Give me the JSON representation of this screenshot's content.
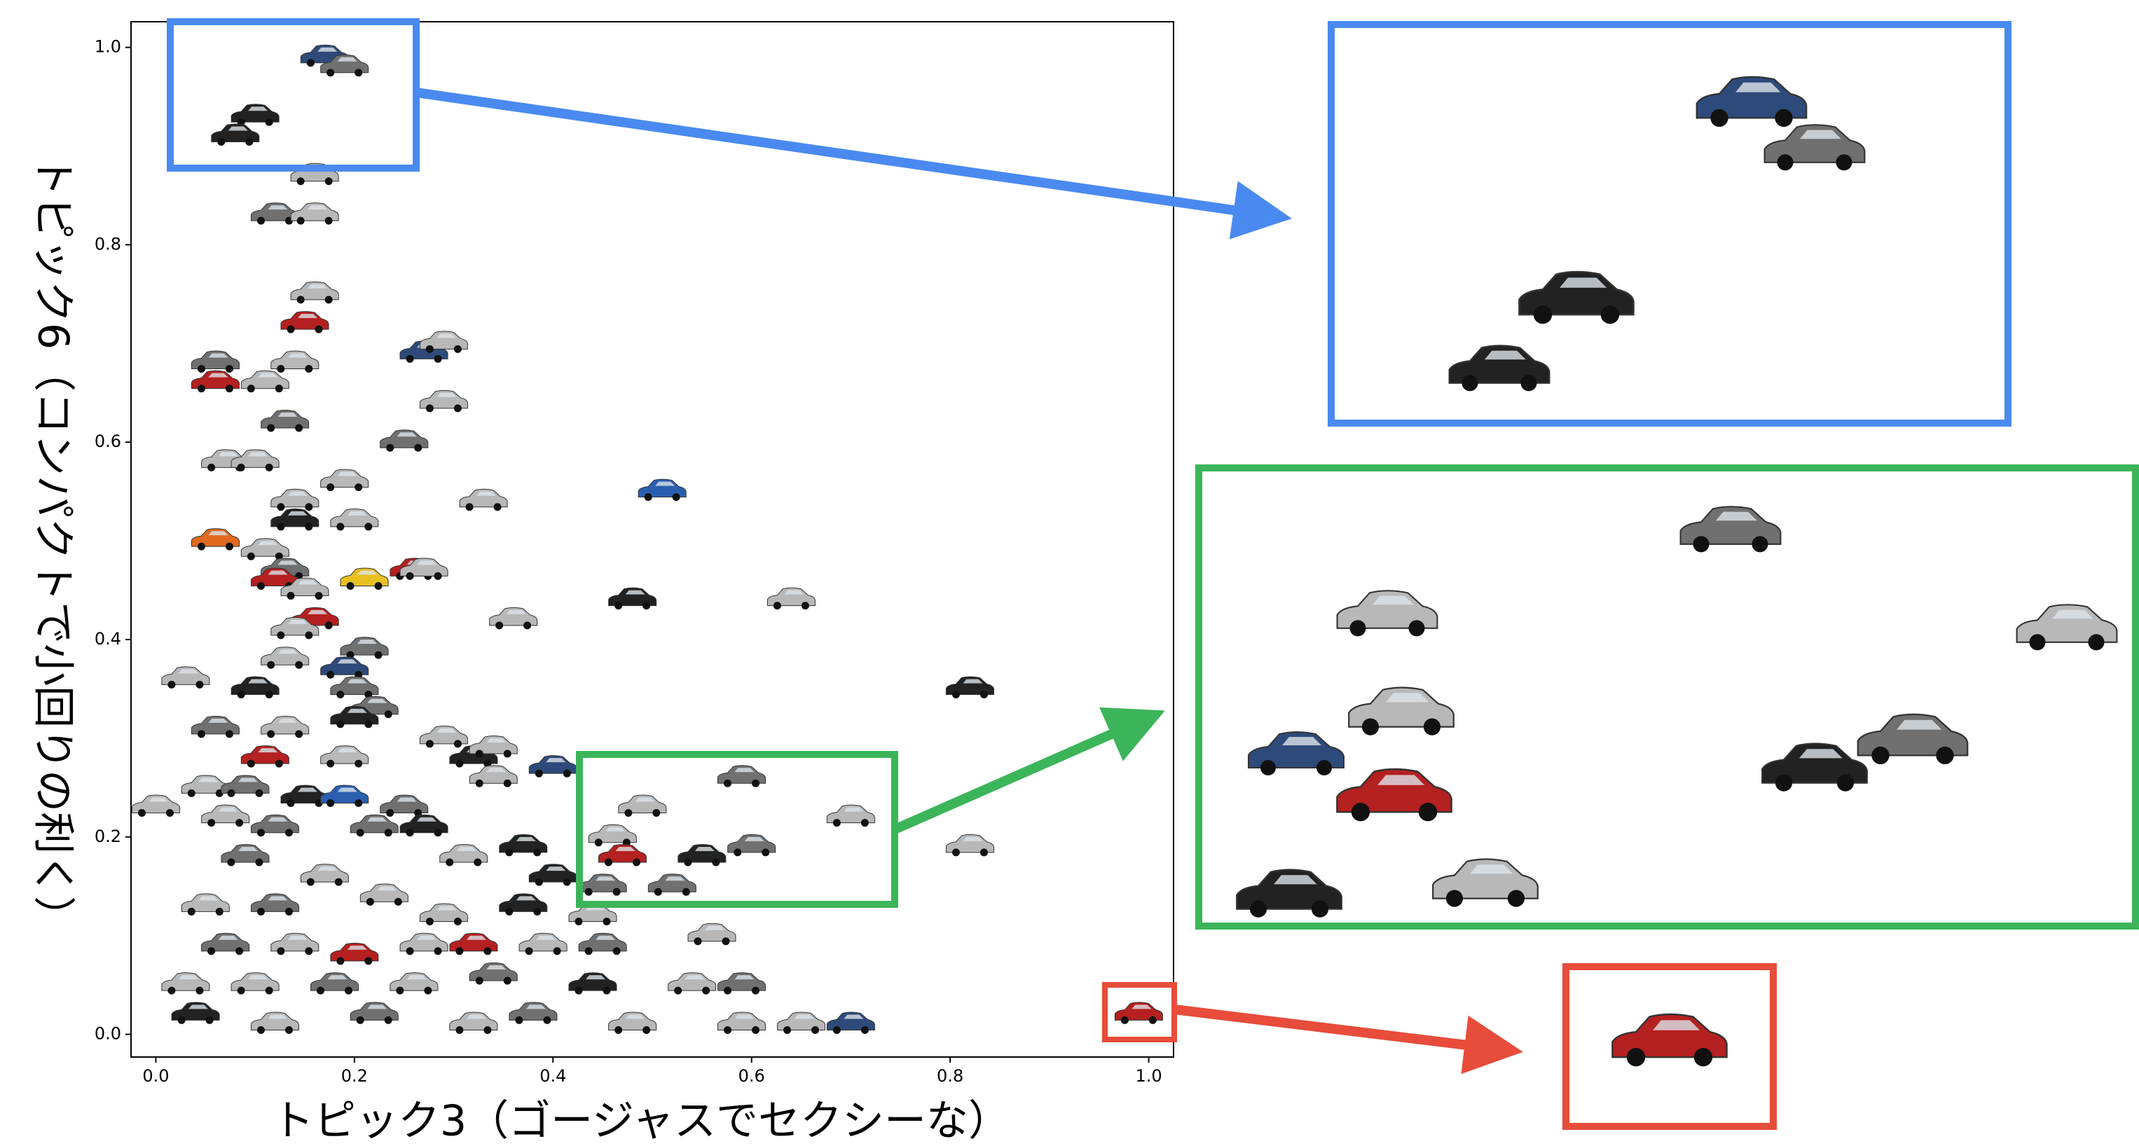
{
  "chart_data": {
    "type": "scatter",
    "xlabel": "トピック3（ゴージャスでセクシーな）",
    "ylabel": "トピック6（コンパクトで小回りの利く）",
    "xlim": [
      -0.025,
      1.025
    ],
    "ylim": [
      -0.023,
      1.026
    ],
    "xticks": [
      {
        "value": 0,
        "label": "0.0"
      },
      {
        "value": 0.2,
        "label": "0.2"
      },
      {
        "value": 0.4,
        "label": "0.4"
      },
      {
        "value": 0.6,
        "label": "0.6"
      },
      {
        "value": 0.8,
        "label": "0.8"
      },
      {
        "value": 1,
        "label": "1.0"
      }
    ],
    "yticks": [
      {
        "value": 0,
        "label": "0.0"
      },
      {
        "value": 0.2,
        "label": "0.2"
      },
      {
        "value": 0.4,
        "label": "0.4"
      },
      {
        "value": 0.6,
        "label": "0.6"
      },
      {
        "value": 0.8,
        "label": "0.8"
      },
      {
        "value": 1,
        "label": "1.0"
      }
    ],
    "x": [
      0.17,
      0.19,
      0.1,
      0.08,
      0.16,
      0.12,
      0.16,
      0.16,
      0.15,
      0.14,
      0.06,
      0.06,
      0.11,
      0.27,
      0.29,
      0.29,
      0.13,
      0.25,
      0.07,
      0.1,
      0.19,
      0.14,
      0.14,
      0.2,
      0.33,
      0.51,
      0.06,
      0.11,
      0.13,
      0.21,
      0.26,
      0.27,
      0.12,
      0.15,
      0.48,
      0.64,
      0.36,
      0.16,
      0.14,
      0.21,
      0.13,
      0.19,
      0.03,
      0.1,
      0.2,
      0.82,
      0.06,
      0.13,
      0.22,
      0.2,
      0.29,
      0.11,
      0.19,
      0.32,
      0.34,
      0.4,
      0.05,
      0.09,
      0.15,
      0.19,
      0.25,
      0.34,
      0.0,
      0.07,
      0.12,
      0.22,
      0.27,
      0.49,
      0.59,
      0.7,
      0.46,
      0.47,
      0.55,
      0.6,
      0.45,
      0.52,
      0.82,
      0.09,
      0.17,
      0.31,
      0.37,
      0.4,
      0.05,
      0.12,
      0.23,
      0.29,
      0.37,
      0.44,
      0.07,
      0.14,
      0.2,
      0.27,
      0.32,
      0.39,
      0.45,
      0.56,
      0.03,
      0.1,
      0.18,
      0.26,
      0.34,
      0.44,
      0.54,
      0.59,
      0.04,
      0.12,
      0.22,
      0.32,
      0.38,
      0.48,
      0.59,
      0.65,
      0.7,
      0.99
    ],
    "y": [
      0.99,
      0.98,
      0.93,
      0.91,
      0.87,
      0.83,
      0.83,
      0.75,
      0.72,
      0.68,
      0.68,
      0.66,
      0.66,
      0.69,
      0.7,
      0.64,
      0.62,
      0.6,
      0.58,
      0.58,
      0.56,
      0.54,
      0.52,
      0.52,
      0.54,
      0.55,
      0.5,
      0.49,
      0.47,
      0.46,
      0.47,
      0.47,
      0.46,
      0.45,
      0.44,
      0.44,
      0.42,
      0.42,
      0.41,
      0.39,
      0.38,
      0.37,
      0.36,
      0.35,
      0.35,
      0.35,
      0.31,
      0.31,
      0.33,
      0.32,
      0.3,
      0.28,
      0.28,
      0.28,
      0.29,
      0.27,
      0.25,
      0.25,
      0.24,
      0.24,
      0.23,
      0.26,
      0.23,
      0.22,
      0.21,
      0.21,
      0.21,
      0.23,
      0.26,
      0.22,
      0.2,
      0.18,
      0.18,
      0.19,
      0.15,
      0.15,
      0.19,
      0.18,
      0.16,
      0.18,
      0.19,
      0.16,
      0.13,
      0.13,
      0.14,
      0.12,
      0.13,
      0.12,
      0.09,
      0.09,
      0.08,
      0.09,
      0.09,
      0.09,
      0.09,
      0.1,
      0.05,
      0.05,
      0.05,
      0.05,
      0.06,
      0.05,
      0.05,
      0.05,
      0.02,
      0.01,
      0.02,
      0.01,
      0.02,
      0.01,
      0.01,
      0.01,
      0.01,
      0.02
    ],
    "colors": [
      "#2d4a7a",
      "#707070",
      "#222222",
      "#222222",
      "#b8b8b8",
      "#707070",
      "#b8b8b8",
      "#b8b8b8",
      "#b52020",
      "#b8b8b8",
      "#707070",
      "#b52020",
      "#b8b8b8",
      "#2d4a7a",
      "#b8b8b8",
      "#b8b8b8",
      "#707070",
      "#707070",
      "#b8b8b8",
      "#b8b8b8",
      "#b8b8b8",
      "#b8b8b8",
      "#222222",
      "#b8b8b8",
      "#b8b8b8",
      "#2a5fb0",
      "#e06a20",
      "#b8b8b8",
      "#707070",
      "#e8c020",
      "#b52020",
      "#b8b8b8",
      "#b52020",
      "#b8b8b8",
      "#222222",
      "#b8b8b8",
      "#b8b8b8",
      "#b52020",
      "#b8b8b8",
      "#707070",
      "#b8b8b8",
      "#2d4a7a",
      "#b8b8b8",
      "#222222",
      "#707070",
      "#222222",
      "#707070",
      "#b8b8b8",
      "#707070",
      "#222222",
      "#b8b8b8",
      "#b52020",
      "#b8b8b8",
      "#222222",
      "#b8b8b8",
      "#2d4a7a",
      "#b8b8b8",
      "#707070",
      "#222222",
      "#2a5fb0",
      "#707070",
      "#b8b8b8",
      "#b8b8b8",
      "#b8b8b8",
      "#707070",
      "#707070",
      "#222222",
      "#b8b8b8",
      "#707070",
      "#b8b8b8",
      "#b8b8b8",
      "#b52020",
      "#222222",
      "#707070",
      "#707070",
      "#707070",
      "#b8b8b8",
      "#707070",
      "#b8b8b8",
      "#b8b8b8",
      "#222222",
      "#222222",
      "#b8b8b8",
      "#707070",
      "#b8b8b8",
      "#b8b8b8",
      "#222222",
      "#b8b8b8",
      "#707070",
      "#b8b8b8",
      "#b52020",
      "#b8b8b8",
      "#b52020",
      "#b8b8b8",
      "#707070",
      "#b8b8b8",
      "#b8b8b8",
      "#b8b8b8",
      "#707070",
      "#b8b8b8",
      "#707070",
      "#222222",
      "#b8b8b8",
      "#707070",
      "#222222",
      "#b8b8b8",
      "#707070",
      "#b8b8b8",
      "#707070",
      "#b8b8b8",
      "#b8b8b8",
      "#b8b8b8",
      "#2d4a7a",
      "#b52020"
    ]
  }
}
